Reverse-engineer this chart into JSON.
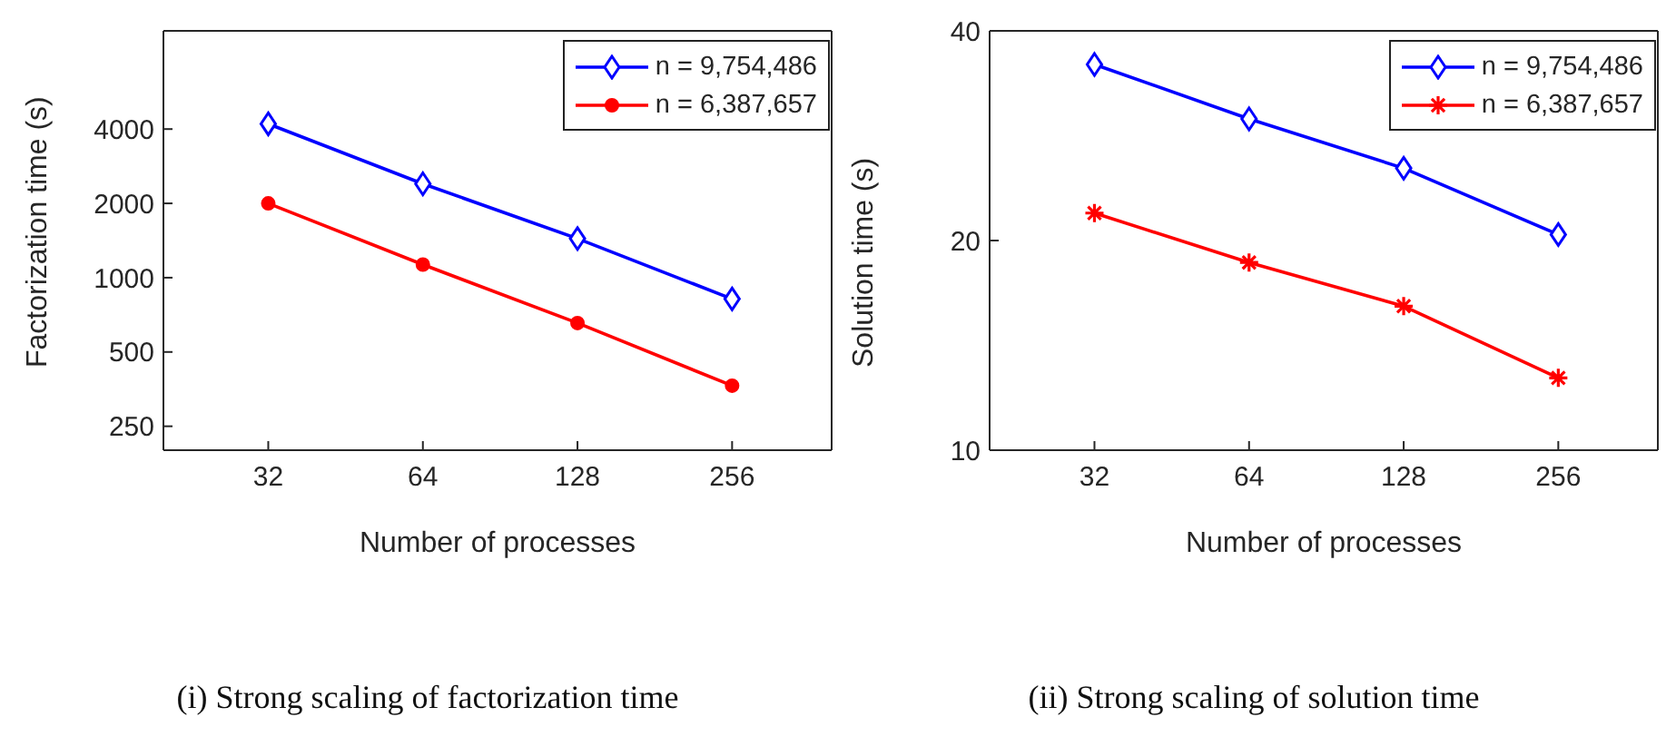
{
  "chart_data": [
    {
      "type": "line",
      "title": "(i) Strong scaling of factorization time",
      "xlabel": "Number of processes",
      "ylabel": "Factorization time (s)",
      "x": [
        32,
        64,
        128,
        256
      ],
      "log": "xy",
      "xlim": [
        20,
        400
      ],
      "xticks": [
        32,
        64,
        128,
        256
      ],
      "ylim": [
        200,
        10000
      ],
      "yticks": [
        250,
        500,
        1000,
        2000,
        4000
      ],
      "grid": false,
      "legend": "top right",
      "series": [
        {
          "name": "n = 9,754,486",
          "color": "#0000ff",
          "marker": "diamond",
          "values": [
            4200,
            2400,
            1440,
            820
          ]
        },
        {
          "name": "n = 6,387,657",
          "color": "#ff0000",
          "marker": "circle",
          "values": [
            2000,
            1130,
            655,
            365
          ]
        }
      ]
    },
    {
      "type": "line",
      "title": "(ii) Strong scaling of solution time",
      "xlabel": "Number of processes",
      "ylabel": "Solution time (s)",
      "x": [
        32,
        64,
        128,
        256
      ],
      "log": "xy",
      "xlim": [
        20,
        400
      ],
      "xticks": [
        32,
        64,
        128,
        256
      ],
      "ylim": [
        10,
        40
      ],
      "yticks": [
        10,
        20,
        40
      ],
      "grid": false,
      "legend": "top right",
      "series": [
        {
          "name": "n = 9,754,486",
          "color": "#0000ff",
          "marker": "diamond",
          "values": [
            35.8,
            29.9,
            25.4,
            20.4
          ]
        },
        {
          "name": "n = 6,387,657",
          "color": "#ff0000",
          "marker": "cross",
          "values": [
            21.9,
            18.6,
            16.1,
            12.7
          ]
        }
      ]
    }
  ]
}
